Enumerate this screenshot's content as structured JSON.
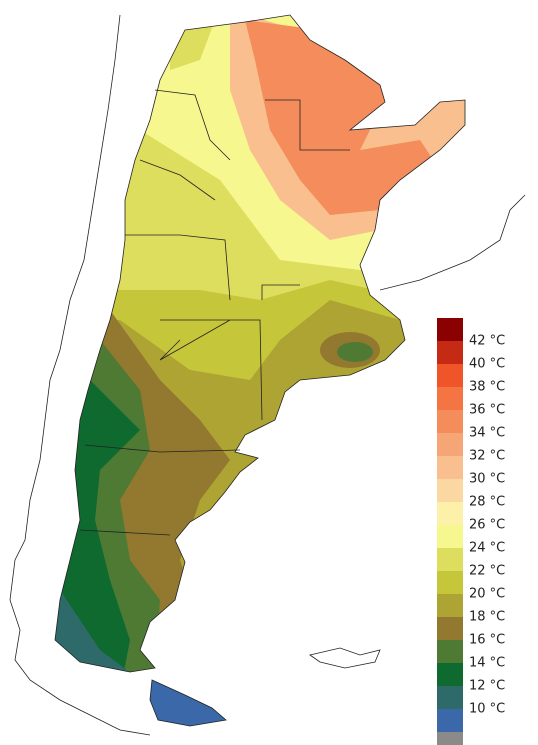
{
  "legend": {
    "labels": [
      "42 °C",
      "40 °C",
      "38 °C",
      "36 °C",
      "34 °C",
      "32 °C",
      "30 °C",
      "28 °C",
      "26 °C",
      "24 °C",
      "22 °C",
      "20 °C",
      "18 °C",
      "16 °C",
      "14 °C",
      "12 °C",
      "10 °C"
    ],
    "colors": [
      "#8b0000",
      "#c42a14",
      "#f0552a",
      "#f47444",
      "#f48c5c",
      "#f6a676",
      "#f9bf8e",
      "#fbd7a2",
      "#fdf0a8",
      "#f6f78e",
      "#dede5e",
      "#c6c63a",
      "#aea434",
      "#93782f",
      "#4f7a34",
      "#0f6a30",
      "#2e6a6a",
      "#3a68a8",
      "#8a8a8a"
    ]
  }
}
